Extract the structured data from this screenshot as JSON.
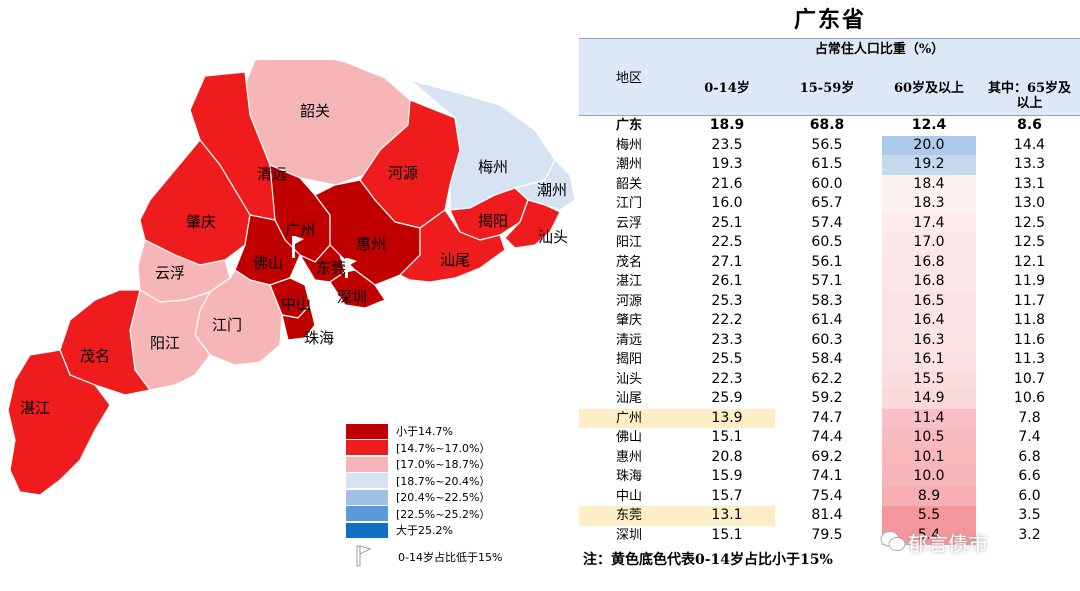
{
  "title": "广东省",
  "legend": [
    {
      "label": "小于14.7%",
      "color": "#c00000"
    },
    {
      "label": "[14.7%~17.0%）",
      "color": "#ee1c1c"
    },
    {
      "label": "[17.0%~18.7%）",
      "color": "#f6b6b8"
    },
    {
      "label": "[18.7%~20.4%）",
      "color": "#d5e3f3"
    },
    {
      "label": "[20.4%~22.5%）",
      "color": "#9fc2e6"
    },
    {
      "label": "[22.5%~25.2%）",
      "color": "#5b9bd9"
    },
    {
      "label": "大于25.2%",
      "color": "#0f6fc6"
    }
  ],
  "legend_flag_label": "0-14岁占比低于15%",
  "map_labels": {
    "shaoguan": "韶关",
    "qingyuan": "清远",
    "heyuan": "河源",
    "meizhou": "梅州",
    "chaozhou": "潮州",
    "zhaoqing": "肇庆",
    "guangzhou": "广州",
    "jieyang": "揭阳",
    "shantou": "汕头",
    "foshan": "佛山",
    "huizhou": "惠州",
    "dongguan": "东莞",
    "shanwei": "汕尾",
    "yunfu": "云浮",
    "shenzhen": "深圳",
    "zhongshan": "中山",
    "jiangmen": "江门",
    "zhuhai": "珠海",
    "yangjiang": "阳江",
    "maoming": "茂名",
    "zhanjiang": "湛江"
  },
  "table": {
    "header_group": "占常住人口比重（%）",
    "header_region": "地区",
    "header_a": "0-14岁",
    "header_b": "15-59岁",
    "header_c": "60岁及以上",
    "header_d_line1": "其中：65岁及",
    "header_d_line2": "以上"
  },
  "note": "注：黄色底色代表0-14岁占比小于15%",
  "watermark": "郁言债市",
  "chart_data": {
    "type": "table",
    "title": "广东省",
    "columns": [
      "地区",
      "0-14岁",
      "15-59岁",
      "60岁及以上",
      "其中：65岁及以上"
    ],
    "rows": [
      {
        "region": "广东",
        "a": "18.9",
        "b": "68.8",
        "c": "12.4",
        "d": "8.6",
        "total": true
      },
      {
        "region": "梅州",
        "a": "23.5",
        "b": "56.5",
        "c": "20.0",
        "d": "14.4"
      },
      {
        "region": "潮州",
        "a": "19.3",
        "b": "61.5",
        "c": "19.2",
        "d": "13.3"
      },
      {
        "region": "韶关",
        "a": "21.6",
        "b": "60.0",
        "c": "18.4",
        "d": "13.1"
      },
      {
        "region": "江门",
        "a": "16.0",
        "b": "65.7",
        "c": "18.3",
        "d": "13.0"
      },
      {
        "region": "云浮",
        "a": "25.1",
        "b": "57.4",
        "c": "17.4",
        "d": "12.5"
      },
      {
        "region": "阳江",
        "a": "22.5",
        "b": "60.5",
        "c": "17.0",
        "d": "12.5"
      },
      {
        "region": "茂名",
        "a": "27.1",
        "b": "56.1",
        "c": "16.8",
        "d": "12.1"
      },
      {
        "region": "湛江",
        "a": "26.1",
        "b": "57.1",
        "c": "16.8",
        "d": "11.9"
      },
      {
        "region": "河源",
        "a": "25.3",
        "b": "58.3",
        "c": "16.5",
        "d": "11.7"
      },
      {
        "region": "肇庆",
        "a": "22.2",
        "b": "61.4",
        "c": "16.4",
        "d": "11.8"
      },
      {
        "region": "清远",
        "a": "23.3",
        "b": "60.3",
        "c": "16.3",
        "d": "11.6"
      },
      {
        "region": "揭阳",
        "a": "25.5",
        "b": "58.4",
        "c": "16.1",
        "d": "11.3"
      },
      {
        "region": "汕头",
        "a": "22.3",
        "b": "62.2",
        "c": "15.5",
        "d": "10.7"
      },
      {
        "region": "汕尾",
        "a": "25.9",
        "b": "59.2",
        "c": "14.9",
        "d": "10.6"
      },
      {
        "region": "广州",
        "a": "13.9",
        "b": "74.7",
        "c": "11.4",
        "d": "7.8",
        "highlight": true
      },
      {
        "region": "佛山",
        "a": "15.1",
        "b": "74.4",
        "c": "10.5",
        "d": "7.4"
      },
      {
        "region": "惠州",
        "a": "20.8",
        "b": "69.2",
        "c": "10.1",
        "d": "6.8"
      },
      {
        "region": "珠海",
        "a": "15.9",
        "b": "74.1",
        "c": "10.0",
        "d": "6.6"
      },
      {
        "region": "中山",
        "a": "15.7",
        "b": "75.4",
        "c": "8.9",
        "d": "6.0"
      },
      {
        "region": "东莞",
        "a": "13.1",
        "b": "81.4",
        "c": "5.5",
        "d": "3.5",
        "highlight": true
      },
      {
        "region": "深圳",
        "a": "15.1",
        "b": "79.5",
        "c": "5.4",
        "d": "3.2"
      }
    ]
  }
}
